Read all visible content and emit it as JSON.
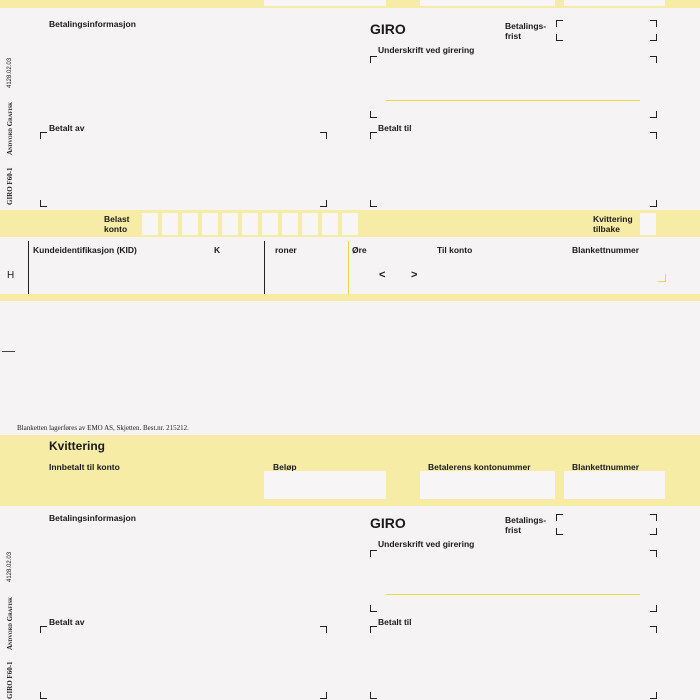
{
  "top_section": {
    "betalingsinformasjon": "Betalingsinformasjon",
    "giro": "GIRO",
    "betalingsfrist": "Betalings-\nfrist",
    "underskrift": "Underskrift ved girering",
    "betalt_av": "Betalt av",
    "betalt_til": "Betalt til",
    "side_form_code": "GIRO F60-1",
    "side_company": "Andvord Grafisk",
    "side_number": "4128.02.03"
  },
  "belast_row": {
    "belast_konto": "Belast\nkonto",
    "kvittering_tilbake": "Kvittering\ntilbake"
  },
  "kid_row": {
    "h_mark": "H",
    "kid": "Kundeidentifikasjon (KID)",
    "kroner_k": "K",
    "kroner_rest": "roner",
    "ore": "Øre",
    "til_konto": "Til konto",
    "blankettnummer": "Blankettnummer",
    "arrow_left": "<",
    "arrow_right": ">"
  },
  "footer_text": "Blanketten lagerføres av EMO AS, Skjetten. Best.nr. 215212.",
  "kvittering_section": {
    "title": "Kvittering",
    "innbetalt": "Innbetalt til konto",
    "belop": "Beløp",
    "betalerens_kontonummer": "Betalerens kontonummer",
    "blankettnummer": "Blankettnummer"
  },
  "bottom_section": {
    "betalingsinformasjon": "Betalingsinformasjon",
    "giro": "GIRO",
    "betalingsfrist": "Betalings-\nfrist",
    "underskrift": "Underskrift ved girering",
    "betalt_av": "Betalt av",
    "betalt_til": "Betalt til",
    "side_form_code": "GIRO F60-1",
    "side_company": "Andvord Grafisk",
    "side_number": "4128.02.03"
  },
  "colors": {
    "form_yellow": "#f6eca6",
    "paper": "#f5f3f4",
    "signature_line": "#e8d94a"
  }
}
